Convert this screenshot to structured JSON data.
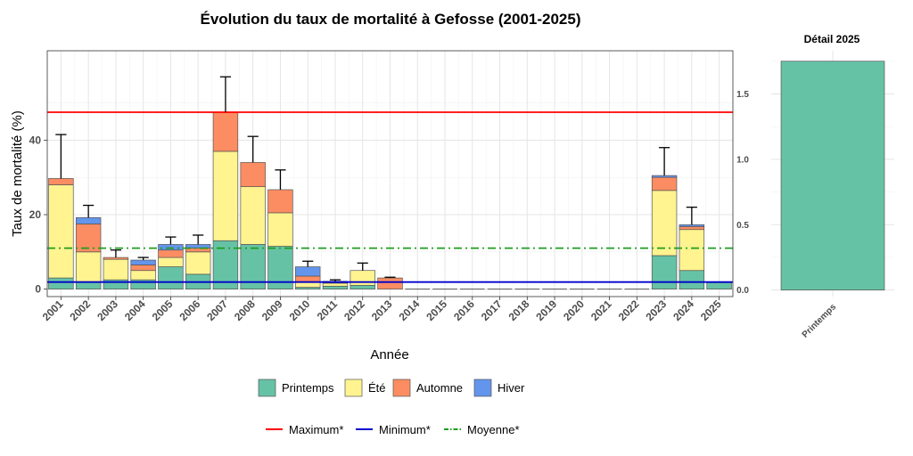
{
  "chart_data": [
    {
      "type": "bar",
      "stacked": true,
      "title": "Évolution du taux de mortalité à Gefosse (2001-2025)",
      "xlabel": "Année",
      "ylabel": "Taux de mortalité (%)",
      "ylim": [
        -2,
        64
      ],
      "yticks": [
        0,
        20,
        40
      ],
      "grid": true,
      "legend_position": "bottom",
      "categories": [
        "2001",
        "2002",
        "2003",
        "2004",
        "2005",
        "2006",
        "2007",
        "2008",
        "2009",
        "2010",
        "2011",
        "2012",
        "2013",
        "2014",
        "2015",
        "2016",
        "2017",
        "2018",
        "2019",
        "2020",
        "2021",
        "2022",
        "2023",
        "2024",
        "2025"
      ],
      "series": [
        {
          "name": "Printemps",
          "color": "#66c2a5",
          "values": [
            3.0,
            2.0,
            2.5,
            2.5,
            6.0,
            4.0,
            13.0,
            12.0,
            11.5,
            0.5,
            0.8,
            1.0,
            0,
            0,
            0,
            0,
            0,
            0,
            0,
            0,
            0,
            0,
            9.0,
            5.0,
            1.75
          ]
        },
        {
          "name": "Été",
          "color": "#fff48f",
          "values": [
            25.0,
            8.0,
            5.5,
            2.5,
            2.5,
            6.0,
            24.0,
            15.5,
            9.0,
            1.5,
            0.8,
            4.0,
            0,
            0,
            0,
            0,
            0,
            0,
            0,
            0,
            0,
            0,
            17.5,
            11.0,
            0
          ]
        },
        {
          "name": "Automne",
          "color": "#fc8d62",
          "values": [
            1.7,
            7.5,
            0.5,
            1.5,
            2.0,
            1.0,
            10.5,
            6.5,
            6.2,
            1.5,
            0.2,
            0,
            3.0,
            0,
            0,
            0,
            0,
            0,
            0,
            0,
            0,
            0,
            3.5,
            0.8,
            0
          ]
        },
        {
          "name": "Hiver",
          "color": "#6495ed",
          "values": [
            0,
            1.7,
            0,
            1.3,
            1.5,
            1.0,
            0,
            0,
            0,
            2.5,
            0.3,
            0,
            0,
            0,
            0,
            0,
            0,
            0,
            0,
            0,
            0,
            0,
            0.5,
            0.5,
            0
          ]
        }
      ],
      "error_upper": [
        41.5,
        22.5,
        10.5,
        8.5,
        14.0,
        14.5,
        57.0,
        41.0,
        32.0,
        7.5,
        2.5,
        7.0,
        3.2,
        0,
        0,
        0,
        0,
        0,
        0,
        0,
        0,
        0,
        38.0,
        22.0,
        1.8
      ],
      "reference_lines": [
        {
          "name": "Maximum*",
          "value": 47.5,
          "color": "#ff0000",
          "style": "solid"
        },
        {
          "name": "Minimum*",
          "value": 1.9,
          "color": "#0000cd",
          "style": "solid"
        },
        {
          "name": "Moyenne*",
          "value": 11.0,
          "color": "#1f9e1f",
          "style": "dotdash"
        }
      ]
    },
    {
      "type": "bar",
      "title": "Détail 2025",
      "categories": [
        "Printemps"
      ],
      "values": [
        1.75
      ],
      "color": "#66c2a5",
      "ylim": [
        -0.05,
        1.83
      ],
      "yticks": [
        0.0,
        0.5,
        1.0,
        1.5
      ],
      "ytick_labels": [
        "0.0",
        "0.5",
        "1.0",
        "1.5"
      ],
      "grid": true
    }
  ]
}
